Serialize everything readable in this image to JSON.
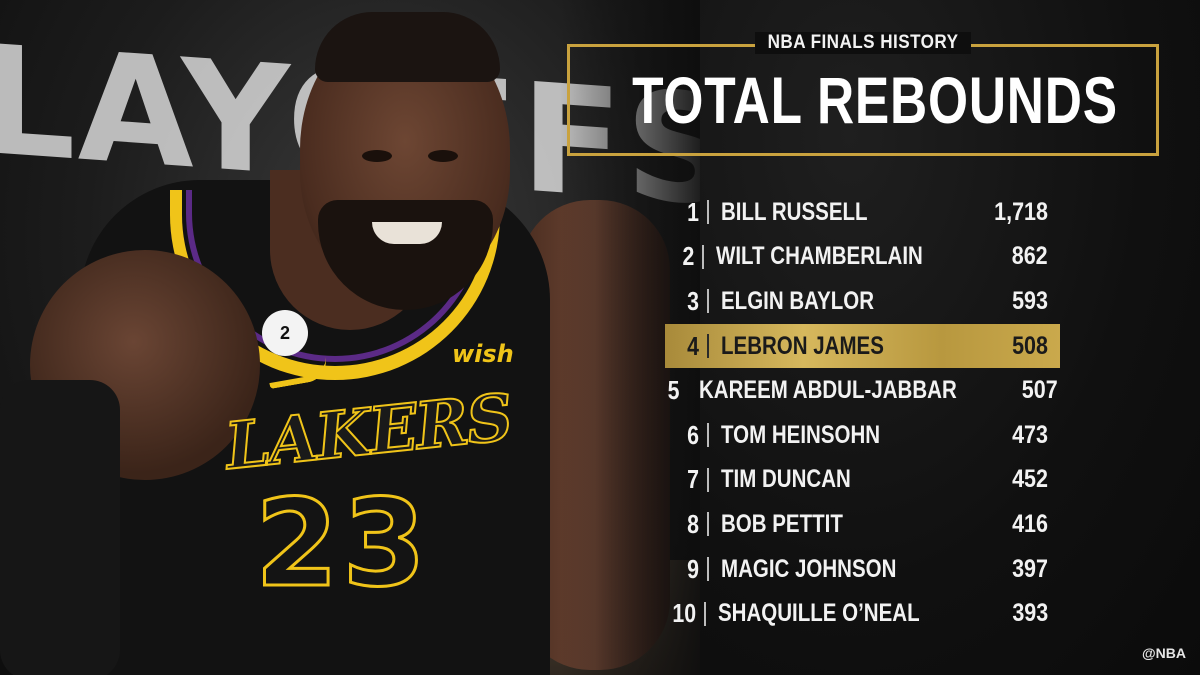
{
  "graphic": {
    "subtitle": "NBA FINALS HISTORY",
    "title": "TOTAL REBOUNDS",
    "handle": "@NBA",
    "accent_color": "#c9a23e",
    "highlight_rank": 4
  },
  "photo": {
    "background_text": "LAYOFFS",
    "jersey_wordmark": "LAKERS",
    "jersey_number": "23",
    "patch_text": "2",
    "sponsor": "wish"
  },
  "leaders": [
    {
      "rank": "1",
      "name": "BILL RUSSELL",
      "value": "1,718"
    },
    {
      "rank": "2",
      "name": "WILT CHAMBERLAIN",
      "value": "862"
    },
    {
      "rank": "3",
      "name": "ELGIN BAYLOR",
      "value": "593"
    },
    {
      "rank": "4",
      "name": "LEBRON JAMES",
      "value": "508"
    },
    {
      "rank": "5",
      "name": "KAREEM ABDUL-JABBAR",
      "value": "507"
    },
    {
      "rank": "6",
      "name": "TOM HEINSOHN",
      "value": "473"
    },
    {
      "rank": "7",
      "name": "TIM DUNCAN",
      "value": "452"
    },
    {
      "rank": "8",
      "name": "BOB PETTIT",
      "value": "416"
    },
    {
      "rank": "9",
      "name": "MAGIC JOHNSON",
      "value": "397"
    },
    {
      "rank": "10",
      "name": "SHAQUILLE O’NEAL",
      "value": "393"
    }
  ]
}
